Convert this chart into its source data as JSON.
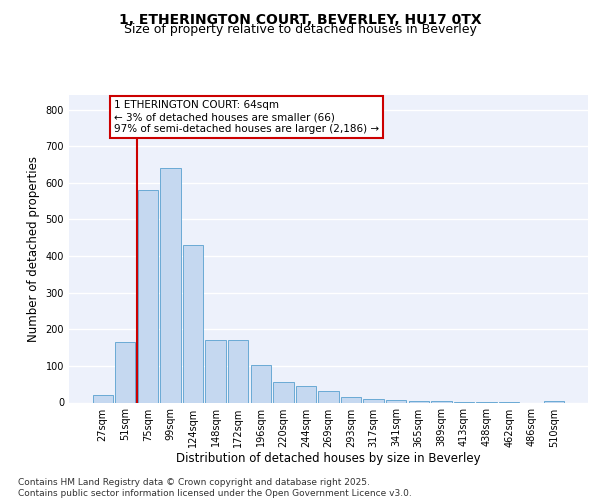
{
  "title_line1": "1, ETHERINGTON COURT, BEVERLEY, HU17 0TX",
  "title_line2": "Size of property relative to detached houses in Beverley",
  "xlabel": "Distribution of detached houses by size in Beverley",
  "ylabel": "Number of detached properties",
  "categories": [
    "27sqm",
    "51sqm",
    "75sqm",
    "99sqm",
    "124sqm",
    "148sqm",
    "172sqm",
    "196sqm",
    "220sqm",
    "244sqm",
    "269sqm",
    "293sqm",
    "317sqm",
    "341sqm",
    "365sqm",
    "389sqm",
    "413sqm",
    "438sqm",
    "462sqm",
    "486sqm",
    "510sqm"
  ],
  "values": [
    20,
    165,
    580,
    640,
    430,
    170,
    170,
    103,
    55,
    45,
    32,
    15,
    10,
    8,
    5,
    3,
    2,
    1,
    1,
    0,
    5
  ],
  "bar_color": "#c5d8f0",
  "bar_edge_color": "#6aaad4",
  "vline_x": 1.5,
  "vline_color": "#cc0000",
  "annotation_text": "1 ETHERINGTON COURT: 64sqm\n← 3% of detached houses are smaller (66)\n97% of semi-detached houses are larger (2,186) →",
  "annotation_box_color": "#ffffff",
  "annotation_box_edge": "#cc0000",
  "ylim": [
    0,
    840
  ],
  "yticks": [
    0,
    100,
    200,
    300,
    400,
    500,
    600,
    700,
    800
  ],
  "background_color": "#edf1fb",
  "grid_color": "#ffffff",
  "footer_text": "Contains HM Land Registry data © Crown copyright and database right 2025.\nContains public sector information licensed under the Open Government Licence v3.0.",
  "title_fontsize": 10,
  "subtitle_fontsize": 9,
  "tick_fontsize": 7,
  "label_fontsize": 8.5,
  "ann_fontsize": 7.5,
  "footer_fontsize": 6.5
}
